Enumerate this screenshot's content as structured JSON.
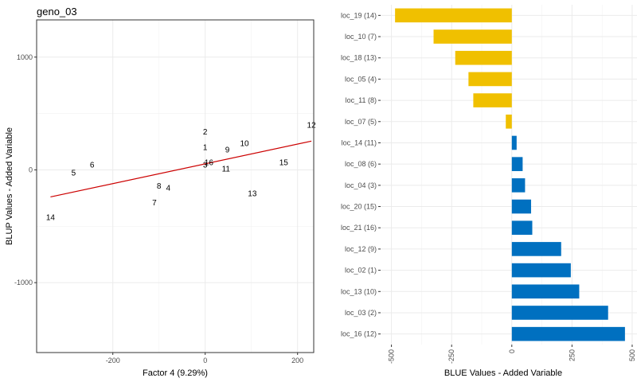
{
  "chart_data": [
    {
      "type": "scatter",
      "title": "geno_03",
      "xlabel": "Factor 4 (9.29%)",
      "ylabel": "BLUP Values - Added Variable",
      "xlim": [
        -365,
        235
      ],
      "ylim": [
        -1620,
        1330
      ],
      "xticks": [
        -200,
        0,
        200
      ],
      "yticks": [
        -1000,
        0,
        1000
      ],
      "grid": true,
      "points": [
        {
          "label": "1",
          "x": 0,
          "y": 200
        },
        {
          "label": "2",
          "x": 0,
          "y": 340
        },
        {
          "label": "3",
          "x": 0,
          "y": 45
        },
        {
          "label": "4",
          "x": -80,
          "y": -160
        },
        {
          "label": "5",
          "x": -285,
          "y": -25
        },
        {
          "label": "6",
          "x": -245,
          "y": 45
        },
        {
          "label": "7",
          "x": -110,
          "y": -290
        },
        {
          "label": "8",
          "x": -100,
          "y": -140
        },
        {
          "label": "9",
          "x": 48,
          "y": 180
        },
        {
          "label": "10",
          "x": 85,
          "y": 235
        },
        {
          "label": "11",
          "x": 45,
          "y": 10
        },
        {
          "label": "12",
          "x": 230,
          "y": 400
        },
        {
          "label": "13",
          "x": 102,
          "y": -210
        },
        {
          "label": "14",
          "x": -335,
          "y": -420
        },
        {
          "label": "15",
          "x": 170,
          "y": 65
        },
        {
          "label": "16",
          "x": 8,
          "y": 65
        }
      ],
      "fit_line": {
        "color": "#cc0000",
        "x": [
          -335,
          230
        ],
        "y": [
          -240,
          255
        ]
      }
    },
    {
      "type": "bar",
      "orientation": "horizontal",
      "xlabel": "BLUE Values - Added Variable",
      "xlim": [
        -545,
        520
      ],
      "xticks": [
        -500,
        -250,
        0,
        250,
        500
      ],
      "grid": true,
      "colors": {
        "negative": "#f0c000",
        "positive": "#0070c0"
      },
      "categories": [
        "loc_19 (14)",
        "loc_10 (7)",
        "loc_18 (13)",
        "loc_05 (4)",
        "loc_11 (8)",
        "loc_07 (5)",
        "loc_14 (11)",
        "loc_08 (6)",
        "loc_04 (3)",
        "loc_20 (15)",
        "loc_21 (16)",
        "loc_12 (9)",
        "loc_02 (1)",
        "loc_13 (10)",
        "loc_03 (2)",
        "loc_16 (12)"
      ],
      "values": [
        -485,
        -325,
        -235,
        -180,
        -160,
        -25,
        20,
        45,
        55,
        80,
        85,
        205,
        245,
        280,
        400,
        470
      ]
    }
  ]
}
